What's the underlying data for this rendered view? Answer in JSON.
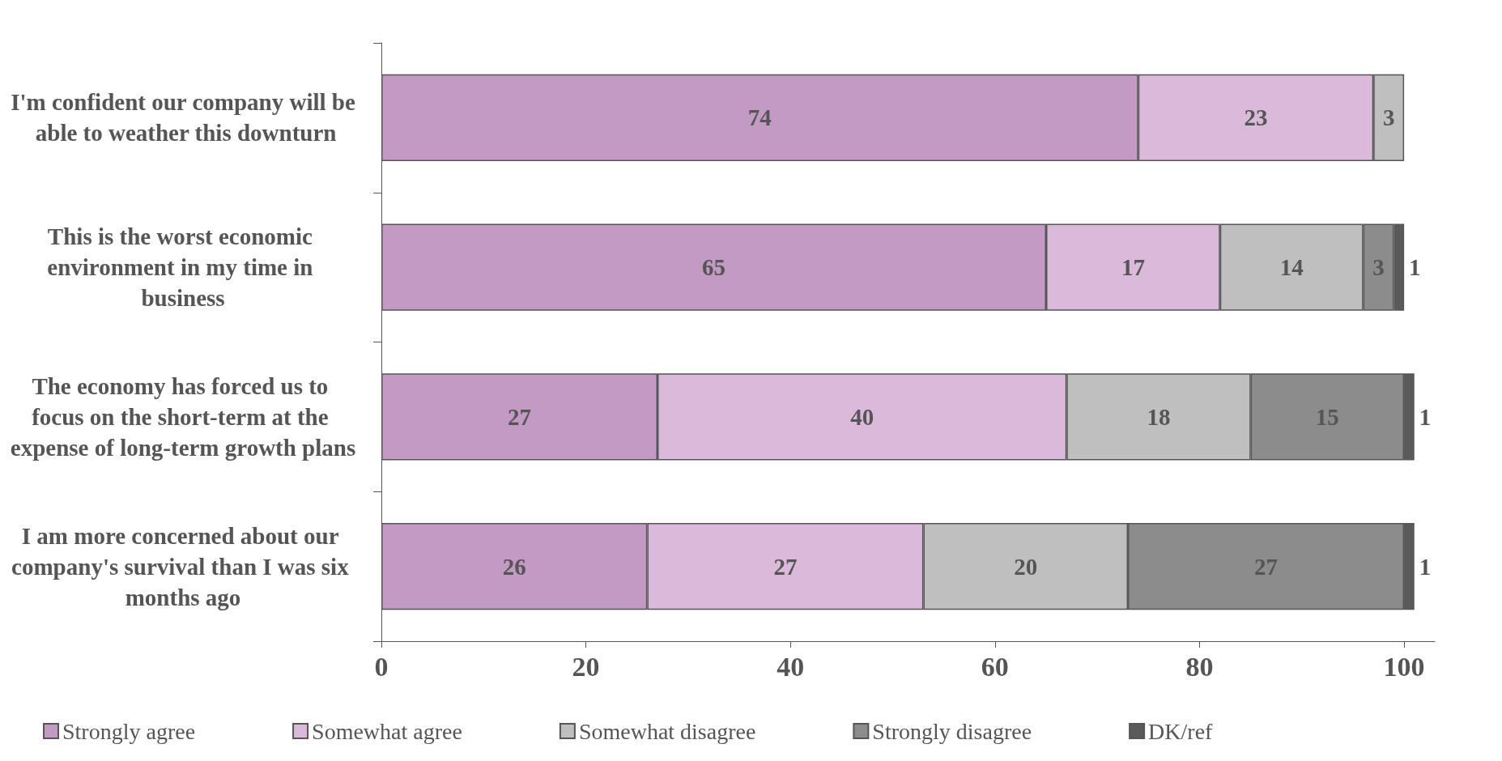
{
  "chart_data": {
    "type": "bar",
    "orientation": "horizontal",
    "stacked": true,
    "data_labels": true,
    "grid": false,
    "legend": "bottom",
    "categories": [
      "I'm confident our company will be able to weather this downturn",
      "This is the worst economic environment in my time in business",
      "The economy has forced us to focus on the short-term at the expense of long-term growth plans",
      "I am more concerned about our company's survival than I was six months ago"
    ],
    "xlim": [
      0,
      103
    ],
    "xticks": [
      0,
      20,
      40,
      60,
      80,
      100
    ],
    "series": [
      {
        "name": "Strongly agree",
        "color": "#c39ac4",
        "values": [
          74,
          65,
          27,
          26
        ]
      },
      {
        "name": "Somewhat agree",
        "color": "#dbb9da",
        "values": [
          23,
          17,
          40,
          27
        ]
      },
      {
        "name": "Somewhat disagree",
        "color": "#bfbfbf",
        "values": [
          3,
          14,
          18,
          20
        ]
      },
      {
        "name": "Strongly disagree",
        "color": "#8c8c8c",
        "values": [
          null,
          3,
          15,
          27
        ]
      },
      {
        "name": "DK/ref",
        "color": "#5a5a5a",
        "values": [
          null,
          1,
          1,
          1
        ]
      }
    ]
  }
}
